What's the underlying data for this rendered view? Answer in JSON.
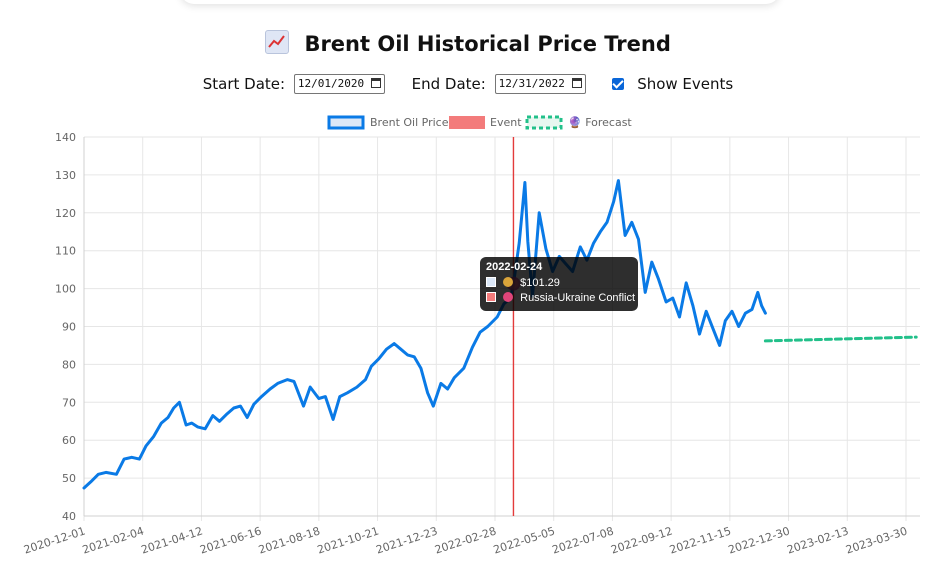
{
  "page": {
    "title": "Brent Oil Historical Price Trend",
    "title_icon": "chart-increasing-icon"
  },
  "controls": {
    "start_label": "Start Date:",
    "start_value": "12/01/2020",
    "end_label": "End Date:",
    "end_value": "12/31/2022",
    "show_events_label": "Show Events",
    "show_events_checked": true
  },
  "chart_data": {
    "type": "line",
    "legend": {
      "placement": "top",
      "items": [
        {
          "label": "Brent Oil Price",
          "color": "#0a7ae6"
        },
        {
          "label": "Event",
          "color": "#f37b7b"
        },
        {
          "label": "🔮 Forecast",
          "color": "#22c08a"
        }
      ]
    },
    "y_ticks": [
      "40",
      "50",
      "60",
      "70",
      "80",
      "90",
      "100",
      "110",
      "120",
      "130",
      "140"
    ],
    "ylim": [
      40,
      140
    ],
    "x_ticks": [
      "2020-12-01",
      "2021-02-04",
      "2021-04-12",
      "2021-06-16",
      "2021-08-18",
      "2021-10-21",
      "2021-12-23",
      "2022-02-28",
      "2022-05-05",
      "2022-07-08",
      "2022-09-12",
      "2022-11-15",
      "2022-12-30",
      "2023-02-13",
      "2023-03-30"
    ],
    "grid": true,
    "series": [
      {
        "name": "Brent Oil Price",
        "color": "#0a7ae6",
        "points": [
          [
            "2020-12-01",
            47.4
          ],
          [
            "2020-12-08",
            49.0
          ],
          [
            "2020-12-16",
            51.0
          ],
          [
            "2020-12-24",
            51.5
          ],
          [
            "2021-01-04",
            51.0
          ],
          [
            "2021-01-12",
            55.0
          ],
          [
            "2021-01-20",
            55.5
          ],
          [
            "2021-01-28",
            55.0
          ],
          [
            "2021-02-04",
            58.5
          ],
          [
            "2021-02-12",
            61.0
          ],
          [
            "2021-02-20",
            64.5
          ],
          [
            "2021-02-27",
            66.0
          ],
          [
            "2021-03-05",
            68.5
          ],
          [
            "2021-03-11",
            70.0
          ],
          [
            "2021-03-18",
            64.0
          ],
          [
            "2021-03-24",
            64.5
          ],
          [
            "2021-03-30",
            63.5
          ],
          [
            "2021-04-07",
            63.0
          ],
          [
            "2021-04-15",
            66.5
          ],
          [
            "2021-04-22",
            65.0
          ],
          [
            "2021-04-30",
            67.0
          ],
          [
            "2021-05-07",
            68.5
          ],
          [
            "2021-05-14",
            69.0
          ],
          [
            "2021-05-21",
            66.0
          ],
          [
            "2021-05-28",
            69.5
          ],
          [
            "2021-06-05",
            71.5
          ],
          [
            "2021-06-14",
            73.5
          ],
          [
            "2021-06-22",
            75.0
          ],
          [
            "2021-07-02",
            76.0
          ],
          [
            "2021-07-09",
            75.5
          ],
          [
            "2021-07-19",
            69.0
          ],
          [
            "2021-07-26",
            74.0
          ],
          [
            "2021-08-04",
            71.0
          ],
          [
            "2021-08-11",
            71.5
          ],
          [
            "2021-08-19",
            65.5
          ],
          [
            "2021-08-26",
            71.5
          ],
          [
            "2021-09-03",
            72.5
          ],
          [
            "2021-09-13",
            74.0
          ],
          [
            "2021-09-22",
            76.0
          ],
          [
            "2021-09-28",
            79.5
          ],
          [
            "2021-10-06",
            81.5
          ],
          [
            "2021-10-14",
            84.0
          ],
          [
            "2021-10-22",
            85.5
          ],
          [
            "2021-10-29",
            84.0
          ],
          [
            "2021-11-05",
            82.5
          ],
          [
            "2021-11-12",
            82.0
          ],
          [
            "2021-11-19",
            79.0
          ],
          [
            "2021-11-26",
            72.5
          ],
          [
            "2021-12-02",
            69.0
          ],
          [
            "2021-12-10",
            75.0
          ],
          [
            "2021-12-17",
            73.5
          ],
          [
            "2021-12-24",
            76.5
          ],
          [
            "2022-01-03",
            79.0
          ],
          [
            "2022-01-12",
            84.5
          ],
          [
            "2022-01-20",
            88.5
          ],
          [
            "2022-01-28",
            90.0
          ],
          [
            "2022-02-07",
            92.5
          ],
          [
            "2022-02-14",
            96.0
          ],
          [
            "2022-02-21",
            97.5
          ],
          [
            "2022-02-24",
            101.29
          ],
          [
            "2022-03-02",
            112.0
          ],
          [
            "2022-03-08",
            128.0
          ],
          [
            "2022-03-11",
            112.5
          ],
          [
            "2022-03-16",
            98.0
          ],
          [
            "2022-03-23",
            120.0
          ],
          [
            "2022-03-30",
            110.5
          ],
          [
            "2022-04-06",
            104.5
          ],
          [
            "2022-04-13",
            108.5
          ],
          [
            "2022-04-20",
            106.5
          ],
          [
            "2022-04-27",
            104.5
          ],
          [
            "2022-05-05",
            111.0
          ],
          [
            "2022-05-12",
            107.5
          ],
          [
            "2022-05-19",
            112.0
          ],
          [
            "2022-05-26",
            115.0
          ],
          [
            "2022-06-02",
            117.5
          ],
          [
            "2022-06-09",
            123.0
          ],
          [
            "2022-06-14",
            128.5
          ],
          [
            "2022-06-21",
            114.0
          ],
          [
            "2022-06-28",
            117.5
          ],
          [
            "2022-07-05",
            113.0
          ],
          [
            "2022-07-12",
            99.0
          ],
          [
            "2022-07-19",
            107.0
          ],
          [
            "2022-07-26",
            102.5
          ],
          [
            "2022-08-03",
            96.5
          ],
          [
            "2022-08-10",
            97.5
          ],
          [
            "2022-08-17",
            92.5
          ],
          [
            "2022-08-24",
            101.5
          ],
          [
            "2022-08-31",
            95.5
          ],
          [
            "2022-09-07",
            88.0
          ],
          [
            "2022-09-14",
            94.0
          ],
          [
            "2022-09-21",
            89.5
          ],
          [
            "2022-09-28",
            85.0
          ],
          [
            "2022-10-04",
            91.5
          ],
          [
            "2022-10-11",
            94.0
          ],
          [
            "2022-10-18",
            90.0
          ],
          [
            "2022-10-25",
            93.5
          ],
          [
            "2022-11-01",
            94.5
          ],
          [
            "2022-11-07",
            99.0
          ],
          [
            "2022-11-11",
            95.5
          ],
          [
            "2022-11-15",
            93.5
          ]
        ]
      },
      {
        "name": "🔮 Forecast",
        "color": "#22c08a",
        "dashed": true,
        "points": [
          [
            "2022-11-15",
            86.2
          ],
          [
            "2023-04-22",
            87.2
          ]
        ]
      }
    ],
    "events": [
      {
        "date": "2022-02-24",
        "label": "Russia-Ukraine Conflict (",
        "color": "#e33b3b"
      }
    ],
    "tooltip": {
      "date": "2022-02-24",
      "price": "$101.29",
      "price_icon": "money-bag-icon",
      "event": "Russia-Ukraine Conflict (",
      "event_icon": "pushpin-icon"
    }
  }
}
